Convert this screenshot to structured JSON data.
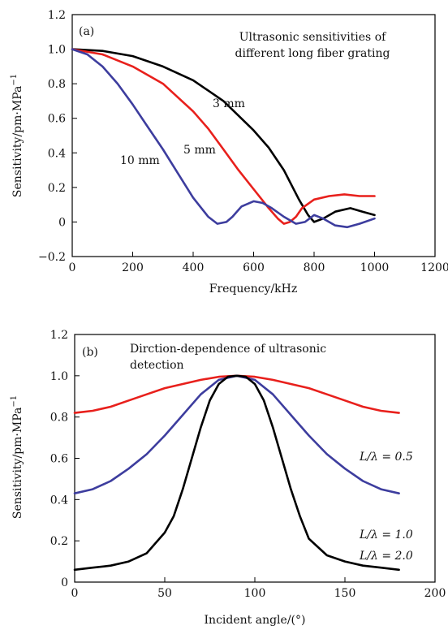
{
  "chart_data": [
    {
      "type": "line",
      "panel_label": "(a)",
      "annotation": [
        "Ultrasonic sensitivities of",
        "different long fiber grating"
      ],
      "xlabel": "Frequency/kHz",
      "ylabel": "Sensitivity/pm·MPa",
      "ylabel_exponent": "−1",
      "xlim": [
        0,
        1200
      ],
      "ylim": [
        -0.2,
        1.2
      ],
      "xticks": [
        0,
        200,
        400,
        600,
        800,
        1000,
        1200
      ],
      "xtick_labels": [
        "0",
        "200",
        "400",
        "600",
        "800",
        "1000",
        "1200"
      ],
      "yticks": [
        -0.2,
        0,
        0.2,
        0.4,
        0.6,
        0.8,
        1.0,
        1.2
      ],
      "ytick_labels": [
        "−0.2",
        "0",
        "0.2",
        "0.4",
        "0.6",
        "0.8",
        "1.0",
        "1.2"
      ],
      "series": [
        {
          "name": "3 mm",
          "color": "#000000",
          "x": [
            0,
            100,
            200,
            300,
            400,
            500,
            600,
            650,
            700,
            750,
            780,
            800,
            830,
            870,
            920,
            960,
            1000
          ],
          "y": [
            1.0,
            0.99,
            0.96,
            0.9,
            0.82,
            0.7,
            0.53,
            0.43,
            0.3,
            0.13,
            0.04,
            0.0,
            0.02,
            0.06,
            0.08,
            0.06,
            0.04
          ]
        },
        {
          "name": "5 mm",
          "color": "#e8201c",
          "x": [
            0,
            100,
            200,
            300,
            400,
            450,
            500,
            550,
            600,
            650,
            680,
            700,
            720,
            740,
            760,
            800,
            850,
            900,
            950,
            1000
          ],
          "y": [
            1.0,
            0.97,
            0.9,
            0.8,
            0.64,
            0.54,
            0.42,
            0.3,
            0.19,
            0.08,
            0.02,
            -0.01,
            0.0,
            0.03,
            0.08,
            0.13,
            0.15,
            0.16,
            0.15,
            0.15
          ]
        },
        {
          "name": "10 mm",
          "color": "#3d3d9e",
          "x": [
            0,
            50,
            100,
            150,
            200,
            250,
            300,
            350,
            400,
            450,
            480,
            510,
            530,
            560,
            600,
            630,
            660,
            700,
            740,
            770,
            800,
            830,
            870,
            910,
            950,
            1000
          ],
          "y": [
            1.0,
            0.97,
            0.9,
            0.8,
            0.68,
            0.55,
            0.42,
            0.28,
            0.14,
            0.03,
            -0.01,
            0.0,
            0.03,
            0.09,
            0.12,
            0.11,
            0.08,
            0.03,
            -0.01,
            0.0,
            0.04,
            0.02,
            -0.02,
            -0.03,
            -0.01,
            0.02
          ]
        }
      ],
      "series_labels": [
        "3 mm",
        "5 mm",
        "10 mm"
      ]
    },
    {
      "type": "line",
      "panel_label": "(b)",
      "annotation": [
        "Dirction-dependence of ultrasonic",
        "detection"
      ],
      "xlabel": "Incident angle/(°)",
      "ylabel": "Sensitivity/pm·MPa",
      "ylabel_exponent": "−1",
      "xlim": [
        0,
        200
      ],
      "ylim": [
        0,
        1.2
      ],
      "xticks": [
        0,
        50,
        100,
        150,
        200
      ],
      "xtick_labels": [
        "0",
        "50",
        "100",
        "150",
        "200"
      ],
      "yticks": [
        0,
        0.2,
        0.4,
        0.6,
        0.8,
        1.0,
        1.2
      ],
      "ytick_labels": [
        "0",
        "0.2",
        "0.4",
        "0.6",
        "0.8",
        "1.0",
        "1.2"
      ],
      "series": [
        {
          "name": "L/λ = 0.5",
          "color": "#e8201c",
          "x": [
            0,
            10,
            20,
            30,
            40,
            50,
            60,
            70,
            80,
            90,
            100,
            110,
            120,
            130,
            140,
            150,
            160,
            170,
            180
          ],
          "y": [
            0.82,
            0.83,
            0.85,
            0.88,
            0.91,
            0.94,
            0.96,
            0.98,
            0.995,
            1.0,
            0.995,
            0.98,
            0.96,
            0.94,
            0.91,
            0.88,
            0.85,
            0.83,
            0.82
          ]
        },
        {
          "name": "L/λ = 1.0",
          "color": "#3d3d9e",
          "x": [
            0,
            10,
            20,
            30,
            40,
            50,
            60,
            70,
            80,
            90,
            100,
            110,
            120,
            130,
            140,
            150,
            160,
            170,
            180
          ],
          "y": [
            0.43,
            0.45,
            0.49,
            0.55,
            0.62,
            0.71,
            0.81,
            0.91,
            0.98,
            1.0,
            0.98,
            0.91,
            0.81,
            0.71,
            0.62,
            0.55,
            0.49,
            0.45,
            0.43
          ]
        },
        {
          "name": "L/λ = 2.0",
          "color": "#000000",
          "x": [
            0,
            10,
            20,
            30,
            40,
            50,
            55,
            60,
            65,
            70,
            75,
            80,
            85,
            90,
            95,
            100,
            105,
            110,
            115,
            120,
            125,
            130,
            140,
            150,
            160,
            170,
            180
          ],
          "y": [
            0.06,
            0.07,
            0.08,
            0.1,
            0.14,
            0.24,
            0.32,
            0.45,
            0.6,
            0.75,
            0.88,
            0.96,
            0.995,
            1.0,
            0.995,
            0.96,
            0.88,
            0.75,
            0.6,
            0.45,
            0.32,
            0.21,
            0.13,
            0.1,
            0.08,
            0.07,
            0.06
          ]
        }
      ],
      "series_labels": [
        "L/λ = 0.5",
        "L/λ = 1.0",
        "L/λ = 2.0"
      ]
    }
  ]
}
